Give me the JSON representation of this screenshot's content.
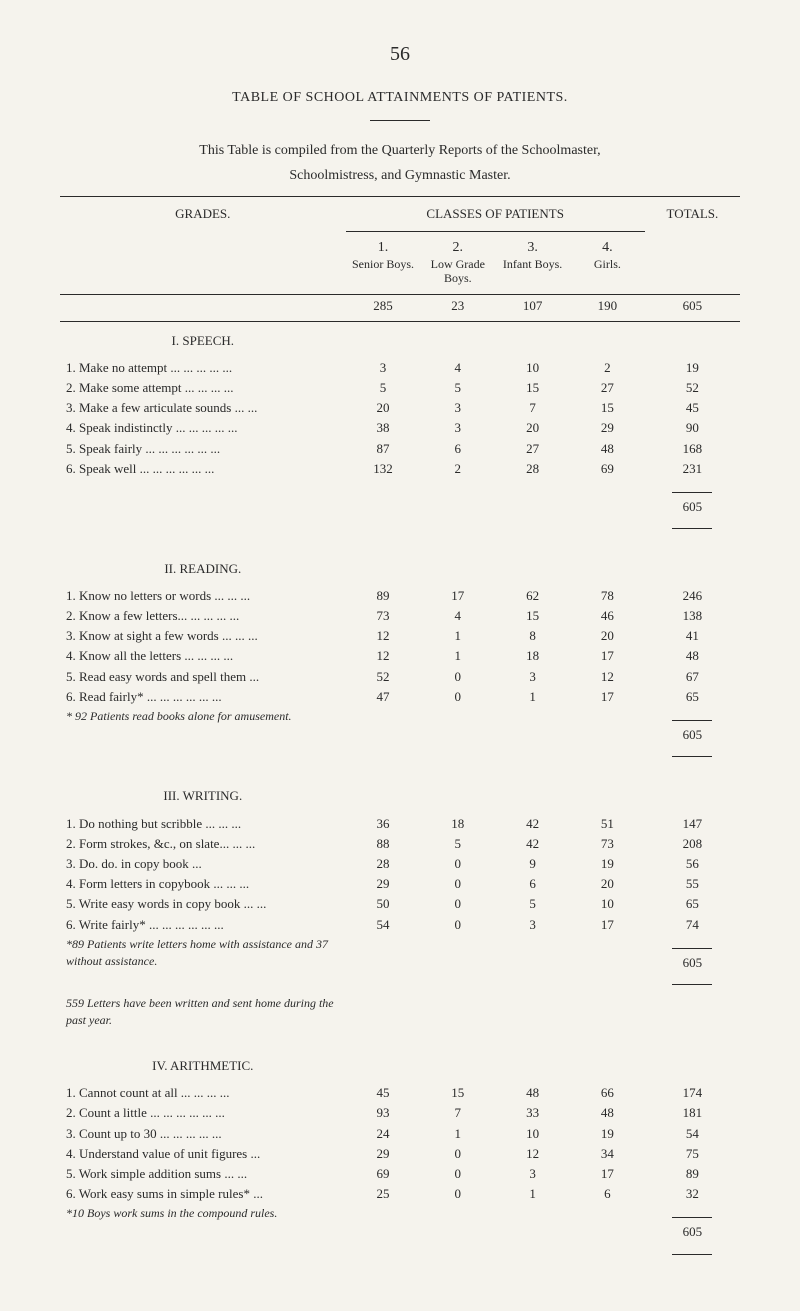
{
  "page_number": "56",
  "title": "TABLE OF SCHOOL ATTAINMENTS OF PATIENTS.",
  "subtitle1": "This Table is compiled from the Quarterly Reports of the Schoolmaster,",
  "subtitle2": "Schoolmistress, and Gymnastic Master.",
  "headers": {
    "grades": "GRADES.",
    "classes_label": "CLASSES OF PATIENTS",
    "col1_num": "1.",
    "col1_label": "Senior Boys.",
    "col2_num": "2.",
    "col2_label": "Low Grade Boys.",
    "col3_num": "3.",
    "col3_label": "Infant Boys.",
    "col4_num": "4.",
    "col4_label": "Girls.",
    "totals": "TOTALS."
  },
  "counts": {
    "c1": "285",
    "c2": "23",
    "c3": "107",
    "c4": "190",
    "total": "605"
  },
  "sections": [
    {
      "name": "I. SPEECH.",
      "rows": [
        {
          "label": "1. Make no attempt ... ... ... ... ...",
          "c1": "3",
          "c2": "4",
          "c3": "10",
          "c4": "2",
          "t": "19"
        },
        {
          "label": "2. Make some attempt    ... ... ... ...",
          "c1": "5",
          "c2": "5",
          "c3": "15",
          "c4": "27",
          "t": "52"
        },
        {
          "label": "3. Make a few articulate sounds ... ...",
          "c1": "20",
          "c2": "3",
          "c3": "7",
          "c4": "15",
          "t": "45"
        },
        {
          "label": "4. Speak indistinctly ... ... ... ... ...",
          "c1": "38",
          "c2": "3",
          "c3": "20",
          "c4": "29",
          "t": "90"
        },
        {
          "label": "5. Speak fairly   ... ... ... ... ... ...",
          "c1": "87",
          "c2": "6",
          "c3": "27",
          "c4": "48",
          "t": "168"
        },
        {
          "label": "6. Speak well   ... ... ... ... ... ...",
          "c1": "132",
          "c2": "2",
          "c3": "28",
          "c4": "69",
          "t": "231"
        }
      ],
      "subtotal": "605"
    },
    {
      "name": "II. READING.",
      "rows": [
        {
          "label": "1. Know no letters or words  ... ... ...",
          "c1": "89",
          "c2": "17",
          "c3": "62",
          "c4": "78",
          "t": "246"
        },
        {
          "label": "2. Know a few letters...  ... ... ... ...",
          "c1": "73",
          "c2": "4",
          "c3": "15",
          "c4": "46",
          "t": "138"
        },
        {
          "label": "3. Know at sight a few words ... ... ...",
          "c1": "12",
          "c2": "1",
          "c3": "8",
          "c4": "20",
          "t": "41"
        },
        {
          "label": "4. Know all the letters    ... ... ... ...",
          "c1": "12",
          "c2": "1",
          "c3": "18",
          "c4": "17",
          "t": "48"
        },
        {
          "label": "5. Read easy words and spell them   ...",
          "c1": "52",
          "c2": "0",
          "c3": "3",
          "c4": "12",
          "t": "67"
        },
        {
          "label": "6. Read fairly*   ... ... ... ... ... ...",
          "c1": "47",
          "c2": "0",
          "c3": "1",
          "c4": "17",
          "t": "65"
        }
      ],
      "note": "* 92 Patients read books alone for amusement.",
      "subtotal": "605"
    },
    {
      "name": "III. WRITING.",
      "rows": [
        {
          "label": "1. Do nothing but scribble    ... ... ...",
          "c1": "36",
          "c2": "18",
          "c3": "42",
          "c4": "51",
          "t": "147"
        },
        {
          "label": "2. Form strokes, &c., on slate... ... ...",
          "c1": "88",
          "c2": "5",
          "c3": "42",
          "c4": "73",
          "t": "208"
        },
        {
          "label": "3.   Do.        do.      in copy book   ...",
          "c1": "28",
          "c2": "0",
          "c3": "9",
          "c4": "19",
          "t": "56"
        },
        {
          "label": "4. Form letters in copybook ... ... ...",
          "c1": "29",
          "c2": "0",
          "c3": "6",
          "c4": "20",
          "t": "55"
        },
        {
          "label": "5. Write easy words in copy book ... ...",
          "c1": "50",
          "c2": "0",
          "c3": "5",
          "c4": "10",
          "t": "65"
        },
        {
          "label": "6. Write fairly* ... ... ... ... ... ...",
          "c1": "54",
          "c2": "0",
          "c3": "3",
          "c4": "17",
          "t": "74"
        }
      ],
      "note": "*89 Patients write letters home with assistance and 37 without assistance.",
      "note2": "559 Letters have been written and sent home during the past year.",
      "subtotal": "605"
    },
    {
      "name": "IV. ARITHMETIC.",
      "rows": [
        {
          "label": "1. Cannot count at all    ... ... ... ...",
          "c1": "45",
          "c2": "15",
          "c3": "48",
          "c4": "66",
          "t": "174"
        },
        {
          "label": "2. Count a little ... ... ... ... ... ...",
          "c1": "93",
          "c2": "7",
          "c3": "33",
          "c4": "48",
          "t": "181"
        },
        {
          "label": "3. Count up to 30    ... ... ... ... ...",
          "c1": "24",
          "c2": "1",
          "c3": "10",
          "c4": "19",
          "t": "54"
        },
        {
          "label": "4. Understand value of unit figures   ...",
          "c1": "29",
          "c2": "0",
          "c3": "12",
          "c4": "34",
          "t": "75"
        },
        {
          "label": "5. Work simple addition sums    ... ...",
          "c1": "69",
          "c2": "0",
          "c3": "3",
          "c4": "17",
          "t": "89"
        },
        {
          "label": "6. Work easy sums in simple rules*   ...",
          "c1": "25",
          "c2": "0",
          "c3": "1",
          "c4": "6",
          "t": "32"
        }
      ],
      "note": "*10 Boys work sums in the compound rules.",
      "subtotal": "605"
    }
  ]
}
